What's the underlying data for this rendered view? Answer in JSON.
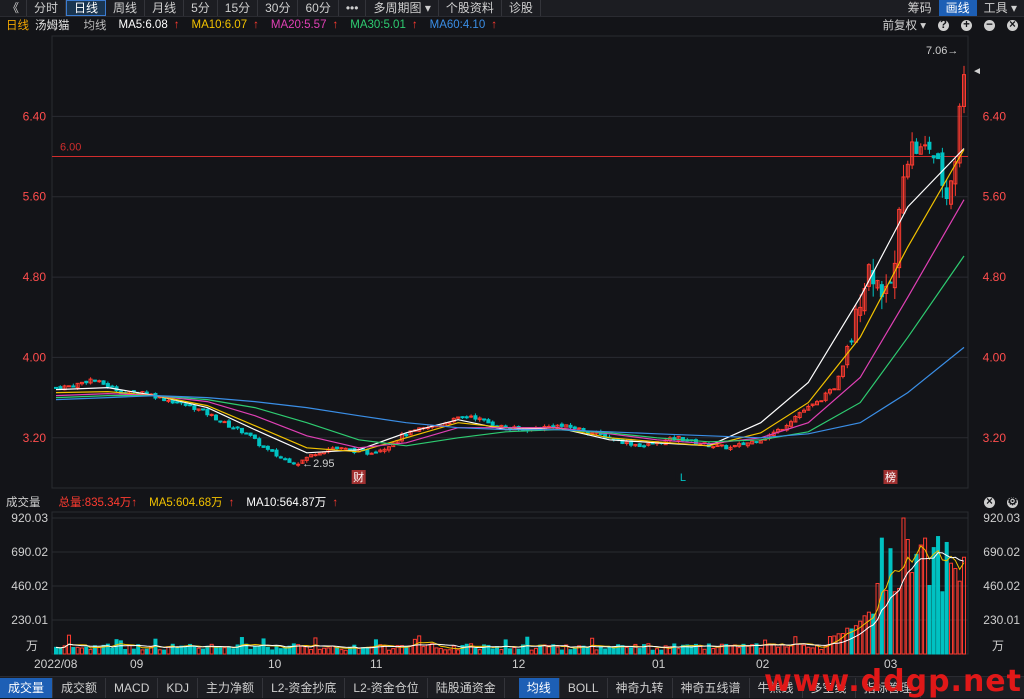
{
  "toolbar": {
    "back": "《",
    "periods": [
      "分时",
      "日线",
      "周线",
      "月线",
      "5分",
      "15分",
      "30分",
      "60分"
    ],
    "active_period": "日线",
    "more": "•••",
    "multi_period": "多周期图",
    "stock_info": "个股资料",
    "diagnose": "诊股",
    "right": {
      "chips": "筹码",
      "draw": "画线",
      "tools": "工具"
    }
  },
  "legend": {
    "period": "日线",
    "name": "汤姆猫",
    "avg": "均线",
    "ma5": "MA5:6.08",
    "ma10": "MA10:6.07",
    "ma20": "MA20:5.57",
    "ma30": "MA30:5.01",
    "ma60": "MA60:4.10",
    "adjust": "前复权"
  },
  "vol_legend": {
    "title": "成交量",
    "total": "总量:835.34万",
    "ma5": "MA5:604.68万",
    "ma10": "MA10:564.87万"
  },
  "colors": {
    "up": "#ff3b30",
    "down": "#00c2c2",
    "ma5": "#ffffff",
    "ma10": "#f2c200",
    "ma20": "#e040b5",
    "ma30": "#2ecc71",
    "ma60": "#3a8ee6",
    "grid": "#2a2b31"
  },
  "chart_data": [
    {
      "type": "candlestick",
      "title": "汤姆猫 日线",
      "ylim": [
        2.7,
        7.2
      ],
      "yticks": [
        "6.40",
        "5.60",
        "4.80",
        "4.00",
        "3.20"
      ],
      "ytick_values": [
        6.4,
        5.6,
        4.8,
        4.0,
        3.2
      ],
      "reference_line": {
        "value": 6.0,
        "label": "6.00"
      },
      "annotations": {
        "high": "7.06→",
        "low": "←2.95",
        "markers": [
          "财",
          "L",
          "榜"
        ]
      },
      "x_labels": [
        "2022/08",
        "09",
        "10",
        "11",
        "12",
        "01",
        "02",
        "03"
      ],
      "close_path": [
        [
          0,
          3.7
        ],
        [
          4,
          3.72
        ],
        [
          8,
          3.78
        ],
        [
          12,
          3.72
        ],
        [
          16,
          3.64
        ],
        [
          20,
          3.66
        ],
        [
          24,
          3.6
        ],
        [
          28,
          3.55
        ],
        [
          32,
          3.5
        ],
        [
          36,
          3.42
        ],
        [
          40,
          3.32
        ],
        [
          44,
          3.25
        ],
        [
          48,
          3.1
        ],
        [
          52,
          3.0
        ],
        [
          56,
          2.95
        ],
        [
          60,
          3.05
        ],
        [
          64,
          3.1
        ],
        [
          68,
          3.08
        ],
        [
          72,
          3.05
        ],
        [
          76,
          3.1
        ],
        [
          80,
          3.22
        ],
        [
          84,
          3.28
        ],
        [
          88,
          3.32
        ],
        [
          92,
          3.38
        ],
        [
          96,
          3.42
        ],
        [
          100,
          3.35
        ],
        [
          104,
          3.3
        ],
        [
          108,
          3.28
        ],
        [
          112,
          3.3
        ],
        [
          116,
          3.32
        ],
        [
          120,
          3.3
        ],
        [
          124,
          3.25
        ],
        [
          128,
          3.2
        ],
        [
          132,
          3.15
        ],
        [
          136,
          3.12
        ],
        [
          140,
          3.16
        ],
        [
          144,
          3.2
        ],
        [
          148,
          3.15
        ],
        [
          152,
          3.12
        ],
        [
          156,
          3.1
        ],
        [
          160,
          3.15
        ],
        [
          164,
          3.2
        ],
        [
          168,
          3.3
        ],
        [
          172,
          3.45
        ],
        [
          176,
          3.55
        ],
        [
          180,
          3.7
        ],
        [
          182,
          3.9
        ],
        [
          184,
          4.2
        ],
        [
          186,
          4.6
        ],
        [
          188,
          4.9
        ],
        [
          190,
          4.75
        ],
        [
          192,
          4.6
        ],
        [
          194,
          4.9
        ],
        [
          196,
          5.9
        ],
        [
          198,
          6.1
        ],
        [
          200,
          6.05
        ],
        [
          202,
          6.1
        ],
        [
          204,
          5.9
        ],
        [
          206,
          5.6
        ],
        [
          208,
          6.0
        ],
        [
          210,
          6.9
        ]
      ],
      "ma_series": [
        {
          "name": "MA5",
          "values": [
            3.68,
            3.7,
            3.62,
            3.5,
            3.28,
            3.05,
            3.08,
            3.25,
            3.38,
            3.28,
            3.3,
            3.18,
            3.15,
            3.12,
            3.35,
            3.75,
            4.6,
            5.5,
            6.08
          ]
        },
        {
          "name": "MA10",
          "values": [
            3.65,
            3.66,
            3.62,
            3.52,
            3.32,
            3.1,
            3.06,
            3.2,
            3.35,
            3.3,
            3.3,
            3.2,
            3.16,
            3.12,
            3.25,
            3.55,
            4.2,
            5.1,
            6.07
          ]
        },
        {
          "name": "MA20",
          "values": [
            3.62,
            3.64,
            3.62,
            3.56,
            3.42,
            3.22,
            3.1,
            3.15,
            3.3,
            3.3,
            3.3,
            3.24,
            3.18,
            3.14,
            3.2,
            3.35,
            3.8,
            4.6,
            5.57
          ]
        },
        {
          "name": "MA30",
          "values": [
            3.6,
            3.62,
            3.62,
            3.58,
            3.5,
            3.35,
            3.18,
            3.12,
            3.2,
            3.26,
            3.28,
            3.25,
            3.2,
            3.16,
            3.18,
            3.26,
            3.55,
            4.2,
            5.01
          ]
        },
        {
          "name": "MA60",
          "values": [
            3.58,
            3.6,
            3.62,
            3.6,
            3.56,
            3.5,
            3.42,
            3.35,
            3.3,
            3.28,
            3.28,
            3.26,
            3.24,
            3.22,
            3.2,
            3.24,
            3.35,
            3.65,
            4.1
          ]
        }
      ]
    },
    {
      "type": "bar",
      "title": "成交量",
      "unit": "万",
      "ylim": [
        0,
        920.03
      ],
      "yticks": [
        "920.03",
        "690.02",
        "460.02",
        "230.01"
      ],
      "ytick_values": [
        920.03,
        690.02,
        460.02,
        230.01
      ],
      "x_labels": [
        "2022/08",
        "09",
        "10",
        "11",
        "12",
        "01",
        "02",
        "03"
      ],
      "values_summary": {
        "total": 835.34,
        "ma5": 604.68,
        "ma10": 564.87
      }
    }
  ],
  "bottom_tabs": {
    "left": [
      "成交量",
      "成交额",
      "MACD",
      "KDJ",
      "主力净额",
      "L2-资金抄底",
      "L2-资金仓位",
      "陆股通资金"
    ],
    "active_left": "成交量",
    "right": [
      "均线",
      "BOLL",
      "神奇九转",
      "神奇五线谱",
      "牛熊线",
      "多空线",
      "指标管理"
    ],
    "active_right": "均线"
  },
  "watermark": "www.ddgp.net"
}
